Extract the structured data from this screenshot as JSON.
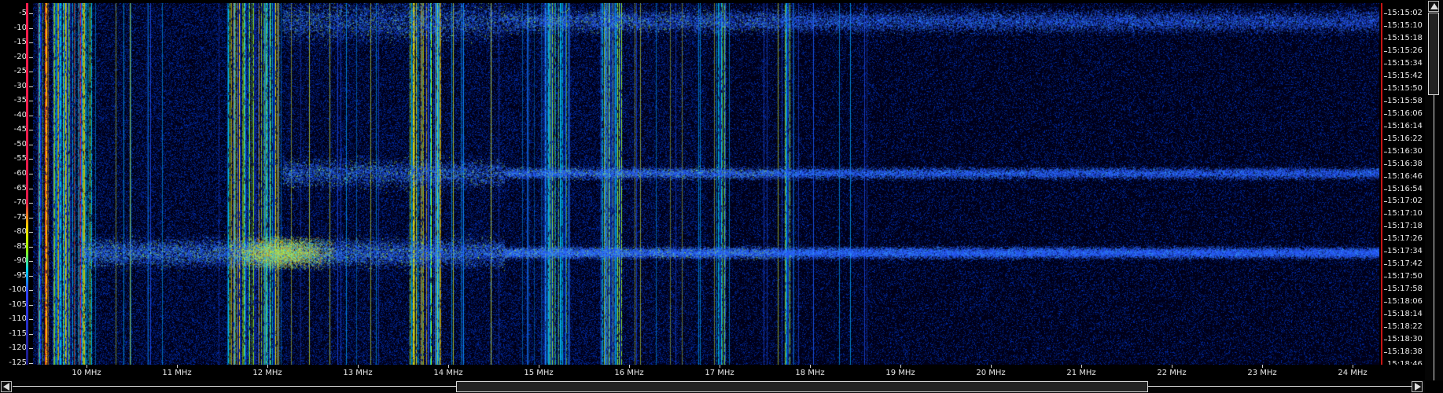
{
  "db_scale": {
    "labels": [
      "-5",
      "-10",
      "-15",
      "-20",
      "-25",
      "-30",
      "-35",
      "-40",
      "-45",
      "-50",
      "-55",
      "-60",
      "-65",
      "-70",
      "-75",
      "-80",
      "-85",
      "-90",
      "-95",
      "-100",
      "-105",
      "-110",
      "-115",
      "-120",
      "-125"
    ]
  },
  "time_scale": {
    "labels": [
      "15:15:02",
      "15:15:10",
      "15:15:18",
      "15:15:26",
      "15:15:34",
      "15:15:42",
      "15:15:50",
      "15:15:58",
      "15:16:06",
      "15:16:14",
      "15:16:22",
      "15:16:30",
      "15:16:38",
      "15:16:46",
      "15:16:54",
      "15:17:02",
      "15:17:10",
      "15:17:18",
      "15:17:26",
      "15:17:34",
      "15:17:42",
      "15:17:50",
      "15:17:58",
      "15:18:06",
      "15:18:14",
      "15:18:22",
      "15:18:30",
      "15:18:38",
      "15:18:46"
    ]
  },
  "freq_axis": {
    "labels": [
      "10 MHz",
      "11 MHz",
      "12 MHz",
      "13 MHz",
      "14 MHz",
      "15 MHz",
      "16 MHz",
      "17 MHz",
      "18 MHz",
      "19 MHz",
      "20 MHz",
      "21 MHz",
      "22 MHz",
      "23 MHz",
      "24 MHz"
    ]
  },
  "waterfall": {
    "type": "spectrogram",
    "freq_range_mhz": [
      9.45,
      24.3
    ],
    "colors": {
      "background": "#000018",
      "noise": "#1030c0",
      "medium": "#00c8ff",
      "strong": "#a0ff20",
      "peak": "#ff2020"
    },
    "signal_bands_mhz": [
      {
        "range": [
          9.5,
          10.1
        ],
        "level": 0.95
      },
      {
        "range": [
          11.6,
          12.15
        ],
        "level": 0.85
      },
      {
        "range": [
          13.6,
          13.95
        ],
        "level": 0.7
      },
      {
        "range": [
          15.1,
          15.35
        ],
        "level": 0.55
      },
      {
        "range": [
          15.7,
          15.95
        ],
        "level": 0.5
      },
      {
        "range": [
          16.95,
          17.1
        ],
        "level": 0.55
      },
      {
        "range": [
          17.75,
          17.8
        ],
        "level": 0.5
      }
    ],
    "sweep_bands": [
      {
        "time_fraction": 0.05,
        "freq_range_mhz": [
          12.2,
          24.3
        ]
      },
      {
        "time_fraction": 0.47,
        "freq_range_mhz": [
          12.2,
          24.3
        ]
      },
      {
        "time_fraction": 0.69,
        "freq_range_mhz": [
          10.0,
          24.3
        ]
      }
    ]
  },
  "icons": {
    "scroll_left": "left-arrow-icon",
    "scroll_right": "right-arrow-icon",
    "scroll_up": "up-arrow-icon",
    "scroll_down": "down-arrow-icon"
  }
}
